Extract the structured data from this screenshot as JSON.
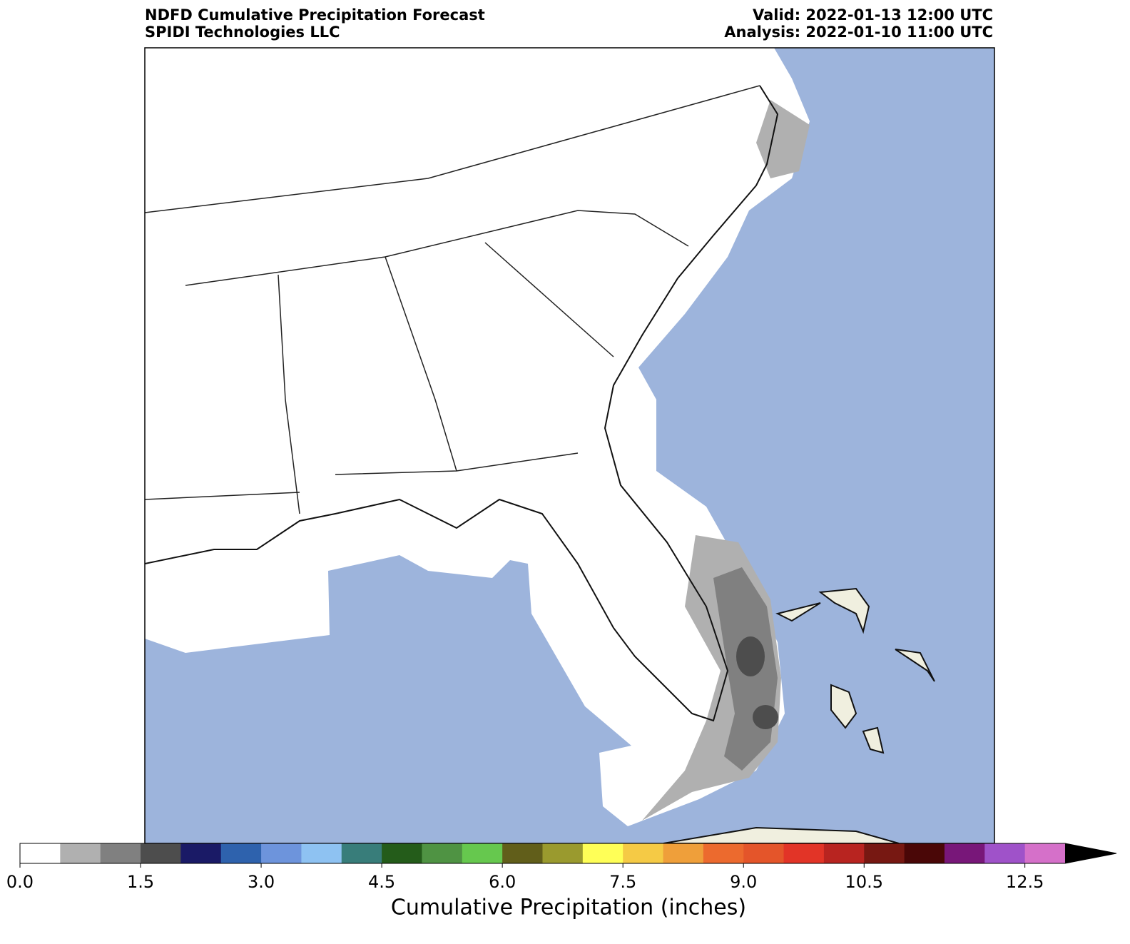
{
  "title": {
    "left": [
      "NDFD Cumulative Precipitation Forecast",
      "SPIDI Technologies LLC"
    ],
    "right": [
      "Valid: 2022-01-13 12:00 UTC",
      "Analysis: 2022-01-10 11:00 UTC"
    ]
  },
  "colorbar": {
    "label": "Cumulative Precipitation (inches)",
    "lim": [
      0,
      13
    ],
    "colors": [
      "#ffffff",
      "#b0b0b0",
      "#808080",
      "#4d4d4d",
      "#1a1a66",
      "#2e62ad",
      "#6d94dc",
      "#8ec2f2",
      "#387d7a",
      "#245c1a",
      "#4f9343",
      "#66c84e",
      "#615e1a",
      "#9a9a2e",
      "#ffff57",
      "#f5ca45",
      "#ef9f3a",
      "#ec6a2e",
      "#e4552a",
      "#e23427",
      "#b82420",
      "#771812",
      "#4a0707",
      "#781779",
      "#9f52c9",
      "#d570c9"
    ],
    "over_color": "#000000",
    "ticks": [
      {
        "value": 0,
        "label": "0.0"
      },
      1.5,
      {
        "value": 3,
        "label": "3.0"
      },
      4.5,
      {
        "value": 6,
        "label": "6.0"
      },
      7.5,
      {
        "value": 9,
        "label": "9.0"
      },
      10.5,
      12.5
    ]
  }
}
